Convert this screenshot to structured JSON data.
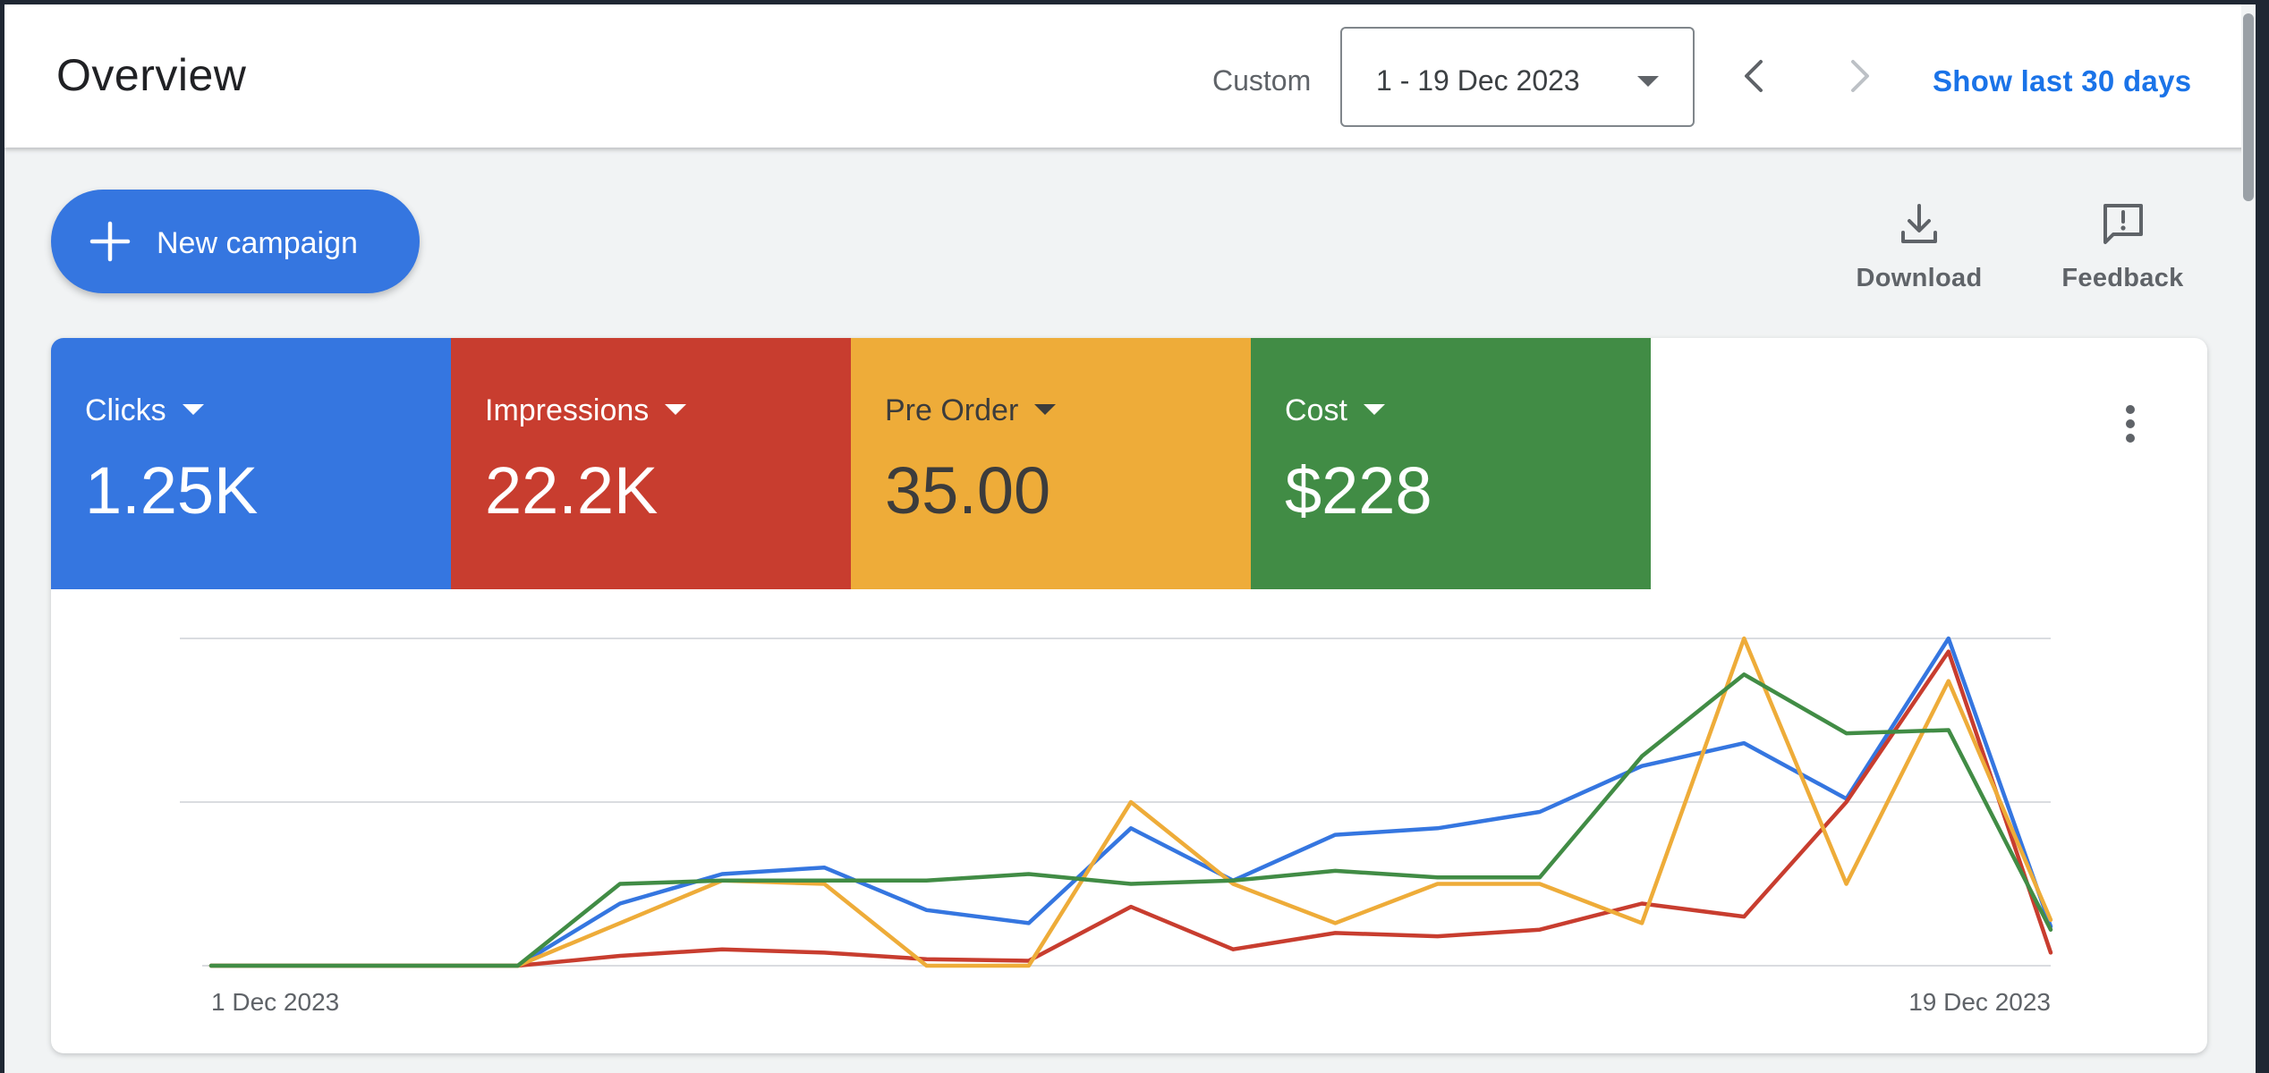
{
  "header": {
    "title": "Overview",
    "range_label": "Custom",
    "date_range": "1 - 19 Dec 2023",
    "show_last_label": "Show last 30 days"
  },
  "actions": {
    "new_campaign": "New campaign",
    "download": "Download",
    "feedback": "Feedback"
  },
  "metrics": [
    {
      "name": "Clicks",
      "value": "1.25K",
      "color": "#3576e0"
    },
    {
      "name": "Impressions",
      "value": "22.2K",
      "color": "#c83d2f"
    },
    {
      "name": "Pre Order",
      "value": "35.00",
      "color": "#eeac39"
    },
    {
      "name": "Cost",
      "value": "$228",
      "color": "#418c45"
    }
  ],
  "chart_data": {
    "type": "line",
    "x_start_label": "1 Dec 2023",
    "x_end_label": "19 Dec 2023",
    "x": [
      1,
      2,
      3,
      4,
      5,
      6,
      7,
      8,
      9,
      10,
      11,
      12,
      13,
      14,
      15,
      16,
      17,
      18,
      19
    ],
    "ylim": [
      0,
      1
    ],
    "grid": true,
    "series": [
      {
        "color": "#3576e0",
        "values": [
          0,
          0,
          0,
          0,
          0.19,
          0.28,
          0.3,
          0.17,
          0.13,
          0.42,
          0.26,
          0.4,
          0.42,
          0.47,
          0.61,
          0.68,
          0.51,
          1.0,
          0.12
        ]
      },
      {
        "color": "#c83d2f",
        "values": [
          0,
          0,
          0,
          0,
          0.03,
          0.05,
          0.04,
          0.02,
          0.015,
          0.18,
          0.05,
          0.1,
          0.09,
          0.11,
          0.19,
          0.15,
          0.5,
          0.96,
          0.04
        ]
      },
      {
        "color": "#eeac39",
        "values": [
          0,
          0,
          0,
          0,
          0.13,
          0.26,
          0.25,
          0,
          0,
          0.5,
          0.25,
          0.13,
          0.25,
          0.25,
          0.13,
          1.0,
          0.25,
          0.87,
          0.14
        ]
      },
      {
        "color": "#418c45",
        "values": [
          0,
          0,
          0,
          0,
          0.25,
          0.26,
          0.26,
          0.26,
          0.28,
          0.25,
          0.26,
          0.29,
          0.27,
          0.27,
          0.64,
          0.89,
          0.71,
          0.72,
          0.11
        ]
      }
    ]
  }
}
